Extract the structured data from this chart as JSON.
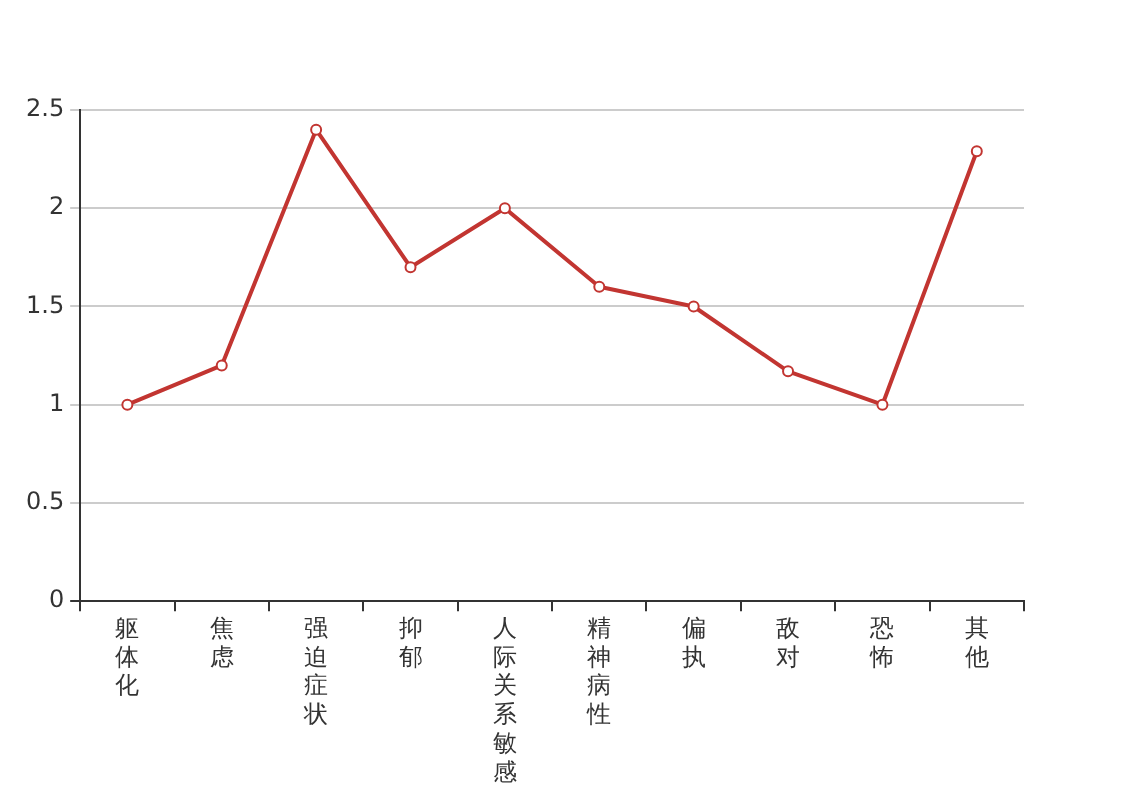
{
  "chart_data": {
    "type": "line",
    "categories": [
      "躯体化",
      "焦虑",
      "强迫症状",
      "抑郁",
      "人际关系敏感",
      "精神病性",
      "偏执",
      "敌对",
      "恐怖",
      "其他"
    ],
    "series": [
      {
        "color": "#c23531",
        "values": [
          1.0,
          1.2,
          2.4,
          1.7,
          2.0,
          1.6,
          1.5,
          1.17,
          1.0,
          2.29
        ]
      }
    ],
    "ylim": [
      0,
      2.5
    ],
    "yticks": [
      0,
      0.5,
      1,
      1.5,
      2,
      2.5
    ],
    "grid": "y",
    "legend": false,
    "marker": "circle",
    "line_style": "solid"
  }
}
